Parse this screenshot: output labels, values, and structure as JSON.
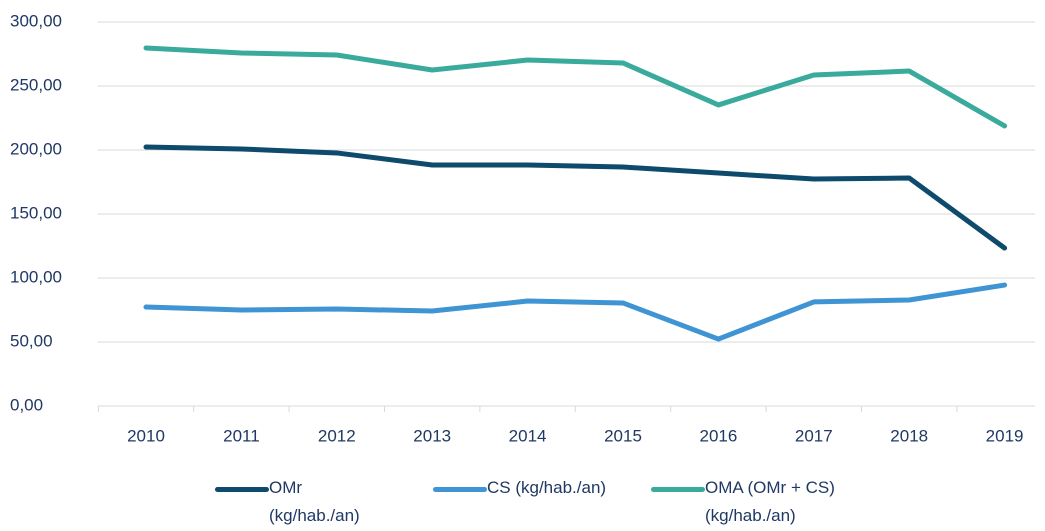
{
  "chart_data": {
    "type": "line",
    "categories": [
      "2010",
      "2011",
      "2012",
      "2013",
      "2014",
      "2015",
      "2016",
      "2017",
      "2018",
      "2019"
    ],
    "series": [
      {
        "name": "OMr (kg/hab./an)",
        "color": "#0d4a6b",
        "values": [
          202.3,
          200.8,
          197.7,
          188.3,
          188.3,
          186.7,
          182.0,
          177.3,
          178.1,
          123.4
        ]
      },
      {
        "name": "CS (kg/hab./an)",
        "color": "#3f94d4",
        "values": [
          77.3,
          75.0,
          75.8,
          74.2,
          82.0,
          80.5,
          52.3,
          81.3,
          82.8,
          94.5
        ]
      },
      {
        "name": "OMA (OMr + CS) (kg/hab./an)",
        "color": "#3aaa9c",
        "values": [
          279.7,
          275.8,
          274.2,
          262.5,
          270.3,
          268.0,
          235.2,
          258.6,
          261.7,
          218.8
        ]
      }
    ],
    "ylim": [
      0,
      300
    ],
    "yticks": [
      {
        "value": 0,
        "label": "0,00"
      },
      {
        "value": 50,
        "label": "50,00"
      },
      {
        "value": 100,
        "label": "100,00"
      },
      {
        "value": 150,
        "label": "150,00"
      },
      {
        "value": 200,
        "label": "200,00"
      },
      {
        "value": 250,
        "label": "250,00"
      },
      {
        "value": 300,
        "label": "300,00"
      }
    ],
    "grid": true,
    "legend": "bottom"
  }
}
